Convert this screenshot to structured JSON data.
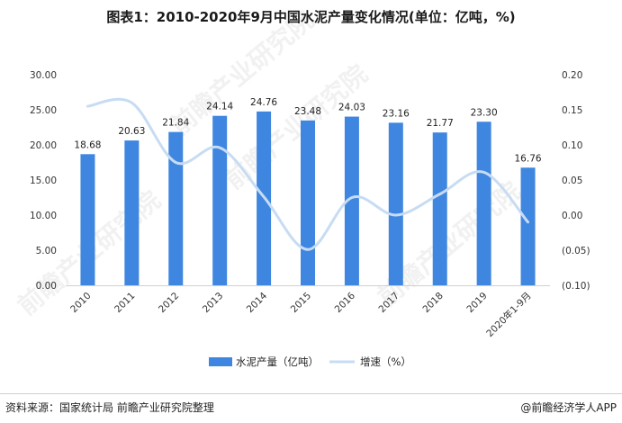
{
  "title": "图表1：2010-2020年9月中国水泥产量变化情况(单位：亿吨，%)",
  "watermark": "前瞻产业研究院",
  "source": "资料来源：国家统计局 前瞻产业研究院整理",
  "brand": "@前瞻经济学人APP",
  "colors": {
    "bar": "#3f86e0",
    "line": "#c7dcf3"
  },
  "chart_data": {
    "type": "bar",
    "categories": [
      "2010",
      "2011",
      "2012",
      "2013",
      "2014",
      "2015",
      "2016",
      "2017",
      "2018",
      "2019",
      "2020年1-9月"
    ],
    "series": [
      {
        "name": "水泥产量（亿吨）",
        "type": "bar",
        "axis": "left",
        "values": [
          18.68,
          20.63,
          21.84,
          24.14,
          24.76,
          23.48,
          24.03,
          23.16,
          21.77,
          23.3,
          16.76
        ],
        "labels": [
          "18.68",
          "20.63",
          "21.84",
          "24.14",
          "24.76",
          "23.48",
          "24.03",
          "23.16",
          "21.77",
          "23.30",
          "16.76"
        ]
      },
      {
        "name": "增速（%）",
        "type": "line",
        "axis": "right",
        "values": [
          0.155,
          0.16,
          0.075,
          0.096,
          0.026,
          -0.049,
          0.025,
          0.0,
          0.03,
          0.061,
          -0.01
        ]
      }
    ],
    "y_left": {
      "min": 0,
      "max": 30,
      "ticks": [
        "0.00",
        "5.00",
        "10.00",
        "15.00",
        "20.00",
        "25.00",
        "30.00"
      ]
    },
    "y_right": {
      "min": -0.1,
      "max": 0.2,
      "ticks": [
        "(0.10)",
        "(0.05)",
        "0.00",
        "0.05",
        "0.10",
        "0.15",
        "0.20"
      ]
    },
    "legend": "bottom",
    "grid": false
  }
}
